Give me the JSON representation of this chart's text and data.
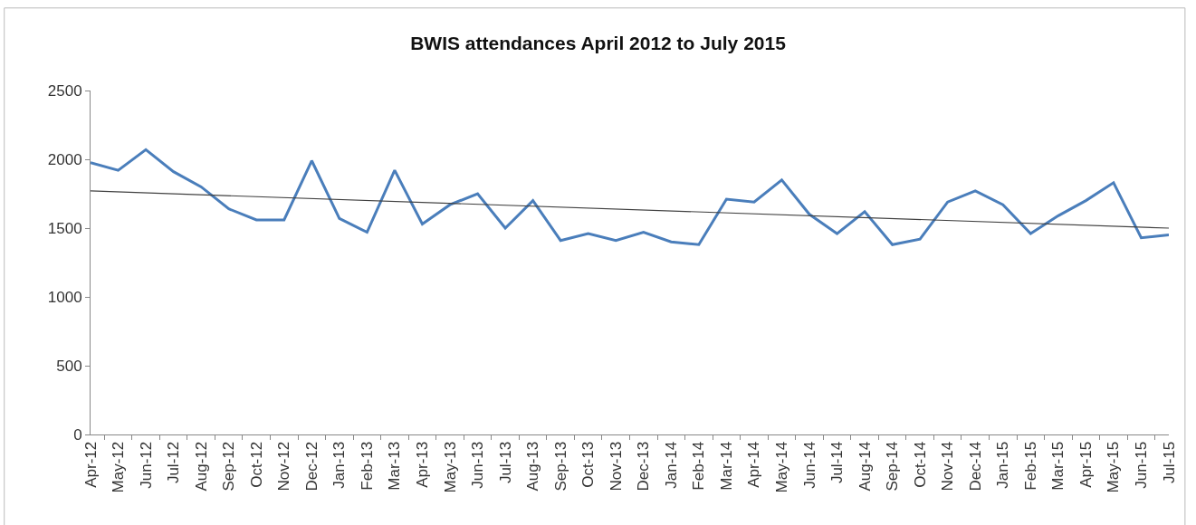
{
  "chart_data": {
    "type": "line",
    "title": "BWIS attendances April 2012 to July 2015",
    "categories": [
      "Apr-12",
      "May-12",
      "Jun-12",
      "Jul-12",
      "Aug-12",
      "Sep-12",
      "Oct-12",
      "Nov-12",
      "Dec-12",
      "Jan-13",
      "Feb-13",
      "Mar-13",
      "Apr-13",
      "May-13",
      "Jun-13",
      "Jul-13",
      "Aug-13",
      "Sep-13",
      "Oct-13",
      "Nov-13",
      "Dec-13",
      "Jan-14",
      "Feb-14",
      "Mar-14",
      "Apr-14",
      "May-14",
      "Jun-14",
      "Jul-14",
      "Aug-14",
      "Sep-14",
      "Oct-14",
      "Nov-14",
      "Dec-14",
      "Jan-15",
      "Feb-15",
      "Mar-15",
      "Apr-15",
      "May-15",
      "Jun-15",
      "Jul-15"
    ],
    "series": [
      {
        "color": "#4a7ebb",
        "values": [
          1975,
          1920,
          2070,
          1910,
          1800,
          1640,
          1560,
          1560,
          1990,
          1570,
          1470,
          1920,
          1530,
          1670,
          1750,
          1500,
          1700,
          1410,
          1460,
          1410,
          1470,
          1400,
          1380,
          1710,
          1690,
          1850,
          1600,
          1460,
          1620,
          1380,
          1420,
          1690,
          1770,
          1670,
          1460,
          1590,
          1700,
          1830,
          1430,
          1450
        ]
      },
      {
        "type": "line",
        "color": "#404040",
        "x": [
          "Apr-12",
          "Jul-15"
        ],
        "values": [
          1770,
          1500
        ]
      }
    ],
    "ylim": [
      0,
      2500
    ],
    "yticks": [
      0,
      500,
      1000,
      1500,
      2000,
      2500
    ],
    "marker": "none"
  }
}
